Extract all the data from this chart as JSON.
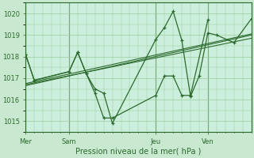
{
  "xlabel": "Pression niveau de la mer( hPa )",
  "bg_color": "#c8e8d0",
  "plot_bg_color": "#cceedd",
  "line_color": "#2d6a2d",
  "grid_color": "#99cc99",
  "ylim": [
    1014.5,
    1020.5
  ],
  "y_ticks": [
    1015,
    1016,
    1017,
    1018,
    1019,
    1020
  ],
  "day_labels": [
    "Mer",
    "Sam",
    "Jeu",
    "Ven"
  ],
  "day_positions": [
    0,
    2.5,
    7.5,
    10.5
  ],
  "xlim": [
    0,
    13
  ],
  "series_jagged_x": [
    0,
    0.5,
    2.5,
    3.0,
    3.5,
    4.0,
    4.5,
    5.0,
    7.5,
    8.0,
    8.5,
    9.0,
    9.5,
    10.0,
    10.5,
    11.0,
    12.0,
    13.0
  ],
  "series_jagged_y": [
    1018.1,
    1016.9,
    1017.3,
    1018.2,
    1017.2,
    1016.5,
    1016.3,
    1014.9,
    1018.8,
    1019.35,
    1020.1,
    1018.75,
    1016.15,
    1017.1,
    1019.1,
    1019.0,
    1018.65,
    1019.75
  ],
  "series2_x": [
    0,
    0.5,
    2.5,
    3.0,
    3.5,
    4.0,
    4.5,
    5.0,
    7.5,
    8.0,
    8.5,
    9.0,
    9.5,
    10.5
  ],
  "series2_y": [
    1018.1,
    1016.9,
    1017.3,
    1018.2,
    1017.2,
    1016.3,
    1015.15,
    1015.15,
    1016.2,
    1017.1,
    1017.1,
    1016.2,
    1016.2,
    1019.7
  ],
  "trend1_x": [
    0,
    13
  ],
  "trend1_y": [
    1016.65,
    1019.0
  ],
  "trend2_x": [
    0,
    13
  ],
  "trend2_y": [
    1016.7,
    1018.85
  ],
  "trend3_x": [
    0,
    13
  ],
  "trend3_y": [
    1016.75,
    1019.05
  ],
  "vline_positions": [
    0,
    2.5,
    7.5,
    10.5
  ]
}
